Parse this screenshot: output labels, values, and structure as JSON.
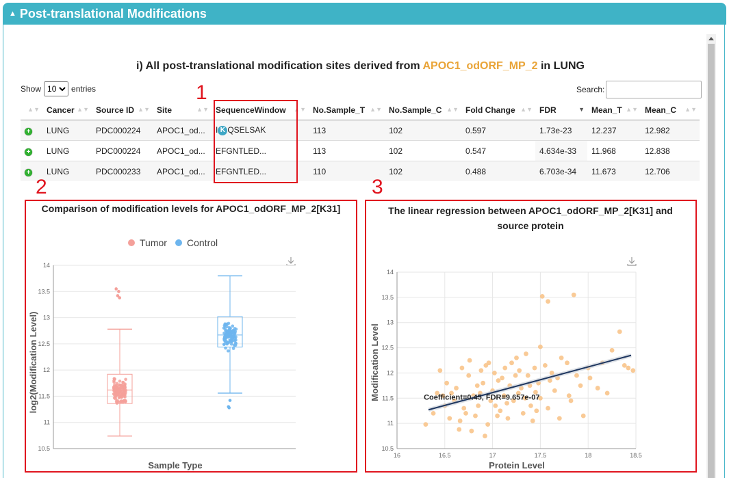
{
  "panel": {
    "title": "Post-translational Modifications"
  },
  "section": {
    "title_prefix": "i) All post-translational modification sites derived from ",
    "gene": "APOC1_odORF_MP_2",
    "title_suffix": " in LUNG"
  },
  "controls": {
    "show_label": "Show",
    "entries_value": "10",
    "entries_label": "entries",
    "search_label": "Search:"
  },
  "table": {
    "columns": [
      "",
      "Cancer",
      "Source ID",
      "Site",
      "SequenceWindow",
      "No.Sample_T",
      "No.Sample_C",
      "Fold Change",
      "FDR",
      "Mean_T",
      "Mean_C"
    ],
    "rows": [
      {
        "cancer": "LUNG",
        "source_id": "PDC000224",
        "site": "APOC1_od...",
        "seq_pre": "I",
        "seq_badge": "K",
        "seq_post": "QSELSAK",
        "seq": "",
        "n_t": "113",
        "n_c": "102",
        "fc": "0.597",
        "fdr": "1.73e-23",
        "mean_t": "12.237",
        "mean_c": "12.982"
      },
      {
        "cancer": "LUNG",
        "source_id": "PDC000224",
        "site": "APOC1_od...",
        "seq": "EFGNTLED...",
        "n_t": "113",
        "n_c": "102",
        "fc": "0.547",
        "fdr": "4.634e-33",
        "mean_t": "11.968",
        "mean_c": "12.838"
      },
      {
        "cancer": "LUNG",
        "source_id": "PDC000233",
        "site": "APOC1_od...",
        "seq": "EFGNTLED...",
        "n_t": "110",
        "n_c": "102",
        "fc": "0.488",
        "fdr": "6.703e-34",
        "mean_t": "11.673",
        "mean_c": "12.706"
      }
    ]
  },
  "annotations": {
    "n1": "1",
    "n2": "2",
    "n3": "3"
  },
  "colors": {
    "header": "#3fb3c6",
    "highlight": "#e9a438",
    "tumor": "#f4a09a",
    "control": "#6db5ee",
    "scatter": "#f8c48b",
    "regression": "#1f3760",
    "annotation_red": "#e0141e"
  },
  "chart_data": [
    {
      "type": "box",
      "title": "Comparison of modification levels for APOC1_odORF_MP_2[K31]",
      "xlabel": "Sample Type",
      "ylabel": "log2(Modification Level)",
      "ylim": [
        10.5,
        14
      ],
      "yticks": [
        "10.5",
        "11",
        "11.5",
        "12",
        "12.5",
        "13",
        "13.5",
        "14"
      ],
      "legend_position": "top",
      "series": [
        {
          "name": "Tumor",
          "color": "#f4a09a",
          "min": 10.74,
          "q1": 11.36,
          "median": 11.62,
          "q3": 11.92,
          "max": 12.78,
          "outliers": [
            13.55,
            13.5,
            13.42,
            13.38
          ],
          "n": 113
        },
        {
          "name": "Control",
          "color": "#6db5ee",
          "min": 11.56,
          "q1": 12.44,
          "median": 12.67,
          "q3": 13.02,
          "max": 13.8,
          "outliers": [
            11.42,
            11.3,
            11.28
          ],
          "n": 102
        }
      ]
    },
    {
      "type": "scatter",
      "title": "The linear regression between APOC1_odORF_MP_2[K31] and source protein",
      "xlabel": "Protein Level",
      "ylabel": "Modification Level",
      "xlim": [
        16,
        18.5
      ],
      "ylim": [
        10.5,
        14
      ],
      "xticks": [
        "16",
        "16.5",
        "17",
        "17.5",
        "18",
        "18.5"
      ],
      "yticks": [
        "10.5",
        "11",
        "11.5",
        "12",
        "12.5",
        "13",
        "13.5",
        "14"
      ],
      "annotation": "Coefficient=0.45, FDR=9.657e-07",
      "regression": {
        "x1": 16.33,
        "y1": 11.27,
        "x2": 18.45,
        "y2": 12.35
      },
      "points": [
        [
          17.52,
          13.52
        ],
        [
          17.58,
          13.42
        ],
        [
          17.85,
          13.55
        ],
        [
          18.33,
          12.82
        ],
        [
          18.25,
          12.45
        ],
        [
          17.5,
          12.52
        ],
        [
          16.45,
          12.05
        ],
        [
          16.42,
          11.6
        ],
        [
          16.3,
          10.98
        ],
        [
          16.38,
          11.2
        ],
        [
          16.55,
          11.1
        ],
        [
          16.65,
          10.88
        ],
        [
          16.7,
          11.3
        ],
        [
          16.78,
          10.85
        ],
        [
          16.92,
          10.75
        ],
        [
          16.95,
          10.98
        ],
        [
          17.05,
          11.15
        ],
        [
          17.15,
          11.4
        ],
        [
          17.2,
          12.2
        ],
        [
          17.25,
          12.3
        ],
        [
          17.3,
          11.7
        ],
        [
          17.35,
          12.38
        ],
        [
          17.42,
          11.05
        ],
        [
          17.4,
          11.35
        ],
        [
          17.45,
          11.62
        ],
        [
          17.55,
          12.15
        ],
        [
          17.6,
          11.85
        ],
        [
          17.62,
          12.0
        ],
        [
          17.7,
          11.1
        ],
        [
          17.72,
          12.3
        ],
        [
          17.8,
          11.55
        ],
        [
          17.88,
          11.95
        ],
        [
          17.95,
          11.15
        ],
        [
          18.0,
          12.1
        ],
        [
          18.02,
          11.9
        ],
        [
          18.1,
          11.7
        ],
        [
          18.15,
          12.2
        ],
        [
          18.2,
          11.6
        ],
        [
          18.38,
          12.15
        ],
        [
          18.42,
          12.1
        ],
        [
          18.47,
          12.05
        ],
        [
          16.6,
          11.45
        ],
        [
          16.62,
          11.7
        ],
        [
          16.68,
          12.1
        ],
        [
          16.72,
          11.2
        ],
        [
          16.8,
          11.55
        ],
        [
          16.85,
          11.35
        ],
        [
          16.88,
          12.05
        ],
        [
          16.9,
          11.8
        ],
        [
          16.98,
          11.45
        ],
        [
          17.0,
          11.65
        ],
        [
          17.02,
          12.0
        ],
        [
          17.08,
          11.25
        ],
        [
          17.1,
          11.9
        ],
        [
          17.12,
          11.55
        ],
        [
          17.18,
          11.75
        ],
        [
          17.22,
          11.45
        ],
        [
          17.28,
          12.05
        ],
        [
          17.32,
          11.2
        ],
        [
          17.37,
          11.95
        ],
        [
          17.48,
          11.8
        ],
        [
          17.5,
          11.5
        ],
        [
          16.5,
          11.35
        ],
        [
          16.52,
          11.8
        ],
        [
          16.57,
          11.6
        ],
        [
          16.75,
          11.95
        ],
        [
          16.82,
          11.15
        ],
        [
          16.87,
          11.6
        ],
        [
          16.93,
          12.15
        ],
        [
          17.03,
          11.35
        ],
        [
          17.13,
          12.1
        ],
        [
          17.27,
          11.6
        ],
        [
          17.39,
          11.75
        ],
        [
          17.44,
          12.1
        ],
        [
          17.58,
          11.3
        ],
        [
          17.65,
          11.65
        ],
        [
          17.68,
          11.9
        ],
        [
          17.78,
          12.2
        ],
        [
          17.82,
          11.45
        ],
        [
          17.92,
          11.75
        ],
        [
          16.48,
          11.55
        ],
        [
          16.66,
          11.05
        ],
        [
          16.96,
          12.2
        ],
        [
          17.06,
          11.85
        ],
        [
          17.16,
          11.1
        ],
        [
          17.34,
          11.5
        ],
        [
          16.76,
          12.25
        ],
        [
          16.84,
          11.75
        ],
        [
          17.24,
          11.95
        ],
        [
          17.46,
          11.25
        ]
      ]
    }
  ]
}
